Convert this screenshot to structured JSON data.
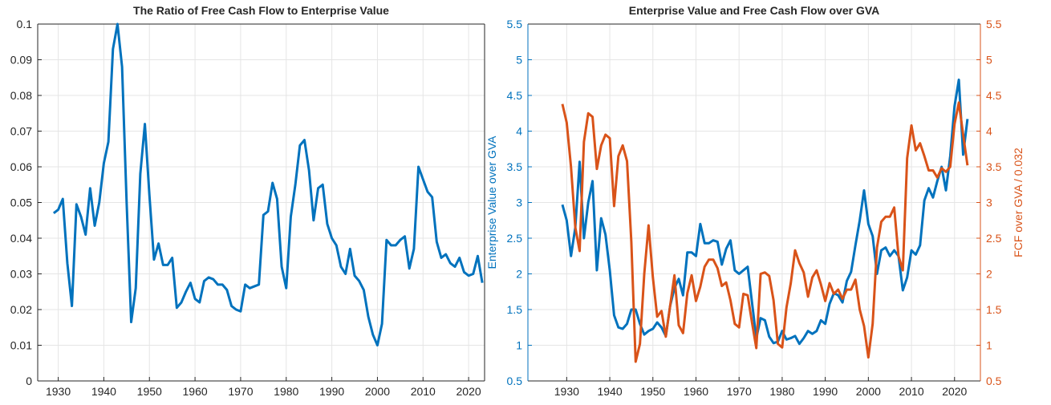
{
  "chart_data": [
    {
      "type": "line",
      "title": "The Ratio of Free Cash Flow to Enterprise Value",
      "x": [
        1929,
        1930,
        1931,
        1932,
        1933,
        1934,
        1935,
        1936,
        1937,
        1938,
        1939,
        1940,
        1941,
        1942,
        1943,
        1944,
        1945,
        1946,
        1947,
        1948,
        1949,
        1950,
        1951,
        1952,
        1953,
        1954,
        1955,
        1956,
        1957,
        1958,
        1959,
        1960,
        1961,
        1962,
        1963,
        1964,
        1965,
        1966,
        1967,
        1968,
        1969,
        1970,
        1971,
        1972,
        1973,
        1974,
        1975,
        1976,
        1977,
        1978,
        1979,
        1980,
        1981,
        1982,
        1983,
        1984,
        1985,
        1986,
        1987,
        1988,
        1989,
        1990,
        1991,
        1992,
        1993,
        1994,
        1995,
        1996,
        1997,
        1998,
        1999,
        2000,
        2001,
        2002,
        2003,
        2004,
        2005,
        2006,
        2007,
        2008,
        2009,
        2010,
        2011,
        2012,
        2013,
        2014,
        2015,
        2016,
        2017,
        2018,
        2019,
        2020,
        2021,
        2022,
        2023
      ],
      "series": [
        {
          "color": "#0072bd",
          "values": [
            0.047,
            0.048,
            0.051,
            0.033,
            0.021,
            0.0495,
            0.046,
            0.041,
            0.054,
            0.0435,
            0.05,
            0.061,
            0.067,
            0.093,
            0.1,
            0.088,
            0.05,
            0.0165,
            0.026,
            0.058,
            0.072,
            0.052,
            0.034,
            0.0385,
            0.0325,
            0.0325,
            0.0345,
            0.0205,
            0.022,
            0.025,
            0.0275,
            0.023,
            0.022,
            0.028,
            0.029,
            0.0285,
            0.027,
            0.027,
            0.0255,
            0.021,
            0.02,
            0.0195,
            0.027,
            0.026,
            0.0265,
            0.027,
            0.0465,
            0.0475,
            0.0555,
            0.051,
            0.032,
            0.026,
            0.046,
            0.055,
            0.066,
            0.0675,
            0.059,
            0.045,
            0.054,
            0.055,
            0.044,
            0.04,
            0.038,
            0.032,
            0.03,
            0.037,
            0.0295,
            0.028,
            0.0255,
            0.018,
            0.013,
            0.01,
            0.016,
            0.0395,
            0.038,
            0.038,
            0.0395,
            0.0405,
            0.0315,
            0.037,
            0.06,
            0.0565,
            0.053,
            0.0515,
            0.039,
            0.0345,
            0.0355,
            0.033,
            0.032,
            0.0345,
            0.0305,
            0.0295,
            0.03,
            0.035,
            0.0275
          ]
        }
      ],
      "xlim": [
        1925.5,
        2023.5
      ],
      "xticks": [
        1930,
        1940,
        1950,
        1960,
        1970,
        1980,
        1990,
        2000,
        2010,
        2020
      ],
      "ylim": [
        0,
        0.1
      ],
      "yticks": [
        0,
        0.01,
        0.02,
        0.03,
        0.04,
        0.05,
        0.06,
        0.07,
        0.08,
        0.09,
        0.1
      ],
      "grid": true
    },
    {
      "type": "line",
      "title": "Enterprise Value and Free Cash Flow over GVA",
      "ylabel": "Enterprise Value over GVA",
      "y2label": "FCF over GVA / 0.032",
      "x": [
        1929,
        1930,
        1931,
        1932,
        1933,
        1934,
        1935,
        1936,
        1937,
        1938,
        1939,
        1940,
        1941,
        1942,
        1943,
        1944,
        1945,
        1946,
        1947,
        1948,
        1949,
        1950,
        1951,
        1952,
        1953,
        1954,
        1955,
        1956,
        1957,
        1958,
        1959,
        1960,
        1961,
        1962,
        1963,
        1964,
        1965,
        1966,
        1967,
        1968,
        1969,
        1970,
        1971,
        1972,
        1973,
        1974,
        1975,
        1976,
        1977,
        1978,
        1979,
        1980,
        1981,
        1982,
        1983,
        1984,
        1985,
        1986,
        1987,
        1988,
        1989,
        1990,
        1991,
        1992,
        1993,
        1994,
        1995,
        1996,
        1997,
        1998,
        1999,
        2000,
        2001,
        2002,
        2003,
        2004,
        2005,
        2006,
        2007,
        2008,
        2009,
        2010,
        2011,
        2012,
        2013,
        2014,
        2015,
        2016,
        2017,
        2018,
        2019,
        2020,
        2021,
        2022,
        2023
      ],
      "series": [
        {
          "color": "#0072bd",
          "values": [
            2.97,
            2.75,
            2.25,
            2.65,
            3.57,
            2.5,
            3.0,
            3.3,
            2.05,
            2.78,
            2.55,
            2.05,
            1.42,
            1.25,
            1.23,
            1.3,
            1.5,
            1.5,
            1.3,
            1.15,
            1.2,
            1.23,
            1.32,
            1.25,
            1.13,
            1.55,
            1.8,
            1.93,
            1.7,
            2.3,
            2.3,
            2.25,
            2.7,
            2.43,
            2.43,
            2.47,
            2.45,
            2.13,
            2.35,
            2.47,
            2.05,
            2.0,
            2.05,
            2.1,
            1.6,
            1.1,
            1.38,
            1.35,
            1.12,
            1.03,
            1.05,
            1.2,
            1.08,
            1.1,
            1.13,
            1.02,
            1.1,
            1.2,
            1.16,
            1.2,
            1.35,
            1.3,
            1.58,
            1.73,
            1.7,
            1.6,
            1.9,
            2.03,
            2.4,
            2.75,
            3.17,
            2.7,
            2.53,
            2.0,
            2.33,
            2.37,
            2.25,
            2.33,
            2.25,
            1.77,
            1.95,
            2.33,
            2.27,
            2.4,
            3.03,
            3.2,
            3.07,
            3.3,
            3.5,
            3.17,
            3.65,
            4.35,
            4.72,
            3.67,
            4.17
          ]
        },
        {
          "color": "#d95319",
          "axis": "y2",
          "values": [
            4.38,
            4.12,
            3.5,
            2.65,
            2.32,
            3.85,
            4.25,
            4.2,
            3.47,
            3.8,
            3.95,
            3.9,
            2.95,
            3.65,
            3.8,
            3.58,
            2.45,
            0.77,
            1.02,
            2.0,
            2.68,
            1.95,
            1.4,
            1.48,
            1.12,
            1.55,
            1.98,
            1.28,
            1.17,
            1.73,
            1.98,
            1.62,
            1.82,
            2.1,
            2.2,
            2.2,
            2.08,
            1.83,
            1.88,
            1.63,
            1.3,
            1.25,
            1.72,
            1.7,
            1.32,
            0.96,
            2.0,
            2.02,
            1.97,
            1.63,
            1.02,
            0.97,
            1.53,
            1.87,
            2.33,
            2.15,
            2.02,
            1.68,
            1.95,
            2.05,
            1.85,
            1.62,
            1.87,
            1.72,
            1.78,
            1.65,
            1.78,
            1.78,
            1.92,
            1.5,
            1.27,
            0.83,
            1.3,
            2.37,
            2.73,
            2.8,
            2.8,
            2.93,
            2.25,
            2.05,
            3.62,
            4.08,
            3.73,
            3.83,
            3.65,
            3.45,
            3.45,
            3.35,
            3.48,
            3.43,
            3.5,
            4.1,
            4.4,
            3.95,
            3.52
          ]
        }
      ],
      "xlim": [
        1921,
        2026
      ],
      "xticks": [
        1930,
        1940,
        1950,
        1960,
        1970,
        1980,
        1990,
        2000,
        2010,
        2020
      ],
      "ylim": [
        0.5,
        5.5
      ],
      "yticks": [
        0.5,
        1,
        1.5,
        2,
        2.5,
        3,
        3.5,
        4,
        4.5,
        5,
        5.5
      ],
      "y2lim": [
        0.5,
        5.5
      ],
      "y2ticks": [
        0.5,
        1,
        1.5,
        2,
        2.5,
        3,
        3.5,
        4,
        4.5,
        5,
        5.5
      ],
      "grid": true
    }
  ]
}
